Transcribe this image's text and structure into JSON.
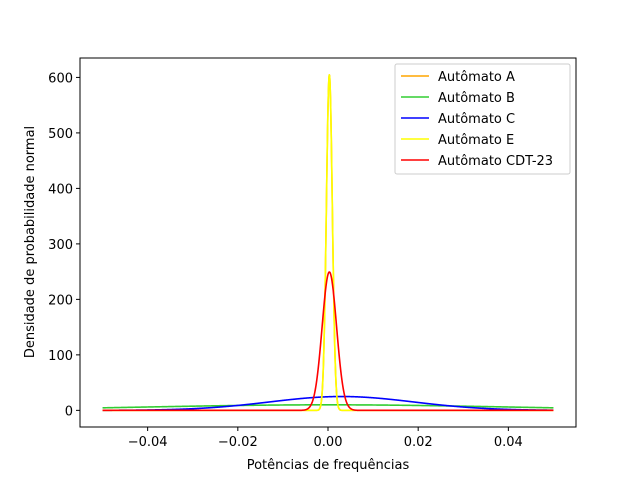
{
  "chart_data": {
    "type": "line",
    "title": "",
    "xlabel": "Potências de frequências",
    "ylabel": "Densidade de probabilidade normal",
    "xlim": [
      -0.055,
      0.055
    ],
    "ylim": [
      -30,
      635
    ],
    "x_range": [
      -0.05,
      0.05
    ],
    "xticks": [
      -0.04,
      -0.02,
      0.0,
      0.02,
      0.04
    ],
    "xtick_labels": [
      "−0.04",
      "−0.02",
      "0.00",
      "0.02",
      "0.04"
    ],
    "yticks": [
      0,
      100,
      200,
      300,
      400,
      500,
      600
    ],
    "ytick_labels": [
      "0",
      "100",
      "200",
      "300",
      "400",
      "500",
      "600"
    ],
    "grid": false,
    "legend": "top-right",
    "series": [
      {
        "name": "Autômato A",
        "color": "#ffa500",
        "mean": 0.0003,
        "std": 0.00066
      },
      {
        "name": "Autômato B",
        "color": "#32cd32",
        "mean": 0.0,
        "std": 0.04
      },
      {
        "name": "Autômato C",
        "color": "#0000ff",
        "mean": 0.003,
        "std": 0.016
      },
      {
        "name": "Autômato E",
        "color": "#ffff00",
        "mean": 0.0003,
        "std": 0.00066
      },
      {
        "name": "Autômato CDT-23",
        "color": "#ff0000",
        "mean": 0.0003,
        "std": 0.0016
      }
    ]
  }
}
